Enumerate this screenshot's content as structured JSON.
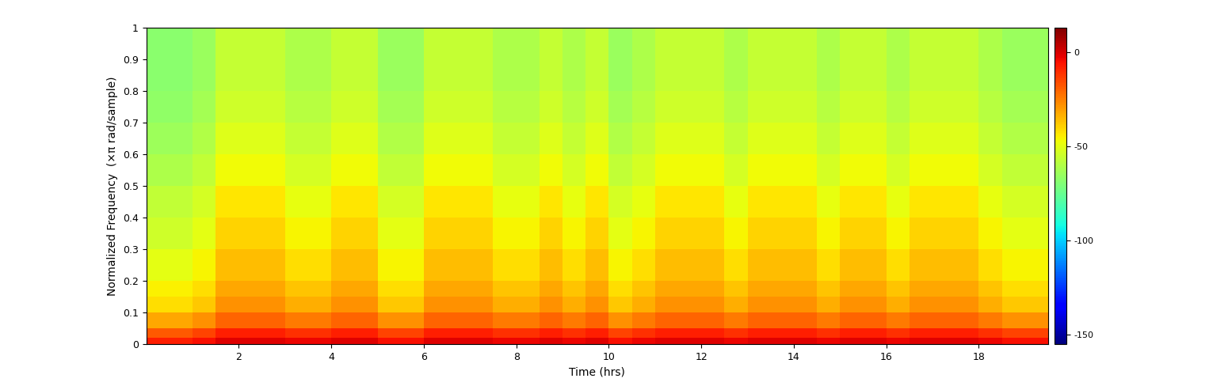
{
  "chart_data": {
    "type": "spectrogram",
    "x_label": "Time (hrs)",
    "y_label": "Normalized Frequency  (×π rad/sample)",
    "color": "jet",
    "xlim": [
      0,
      19.5
    ],
    "xticks": [
      2,
      4,
      6,
      8,
      10,
      12,
      14,
      16,
      18
    ],
    "ylim": [
      0,
      1
    ],
    "yticks": [
      0,
      0.1,
      0.2,
      0.3,
      0.4,
      0.5,
      0.6,
      0.7,
      0.8,
      0.9,
      1
    ],
    "time_edges": [
      0,
      0.5,
      1,
      1.5,
      2,
      2.5,
      3,
      3.5,
      4,
      4.5,
      5,
      5.5,
      6,
      6.5,
      7,
      7.5,
      8,
      8.5,
      9,
      9.5,
      10,
      10.5,
      11,
      11.5,
      12,
      12.5,
      13,
      13.5,
      14,
      14.5,
      15,
      15.5,
      16,
      16.5,
      17,
      17.5,
      18,
      18.5,
      19,
      19.5
    ],
    "freq_edges": [
      0,
      0.02,
      0.05,
      0.1,
      0.15,
      0.2,
      0.3,
      0.4,
      0.5,
      0.6,
      0.7,
      0.8,
      0.9,
      1
    ],
    "cells": [
      [
        -8,
        -8,
        -5,
        -1,
        -1,
        -1,
        -3,
        -3,
        -1,
        -1,
        -5,
        -5,
        -1,
        -1,
        -1,
        -3,
        -3,
        -1,
        -3,
        -1,
        -5,
        -3,
        -1,
        -1,
        -1,
        -3,
        -1,
        -1,
        -1,
        -3,
        -1,
        -1,
        -3,
        -1,
        -1,
        -1,
        -3,
        -5,
        -5
      ],
      [
        -18,
        -18,
        -14,
        -8,
        -8,
        -8,
        -11,
        -11,
        -8,
        -8,
        -14,
        -14,
        -8,
        -8,
        -8,
        -11,
        -11,
        -8,
        -11,
        -8,
        -14,
        -11,
        -8,
        -8,
        -8,
        -11,
        -8,
        -8,
        -8,
        -11,
        -8,
        -8,
        -11,
        -8,
        -8,
        -8,
        -11,
        -14,
        -14
      ],
      [
        -32,
        -32,
        -28,
        -20,
        -20,
        -20,
        -24,
        -24,
        -20,
        -20,
        -28,
        -28,
        -20,
        -20,
        -20,
        -24,
        -24,
        -20,
        -24,
        -20,
        -28,
        -24,
        -20,
        -20,
        -20,
        -24,
        -20,
        -20,
        -20,
        -24,
        -20,
        -20,
        -24,
        -20,
        -20,
        -20,
        -24,
        -28,
        -28
      ],
      [
        -42,
        -42,
        -38,
        -28,
        -28,
        -28,
        -33,
        -33,
        -28,
        -28,
        -38,
        -38,
        -28,
        -28,
        -28,
        -33,
        -33,
        -28,
        -33,
        -28,
        -38,
        -33,
        -28,
        -28,
        -28,
        -33,
        -28,
        -28,
        -28,
        -33,
        -28,
        -28,
        -33,
        -28,
        -28,
        -28,
        -33,
        -38,
        -38
      ],
      [
        -45,
        -45,
        -42,
        -32,
        -32,
        -32,
        -37,
        -37,
        -32,
        -32,
        -42,
        -42,
        -32,
        -32,
        -32,
        -37,
        -37,
        -32,
        -37,
        -32,
        -42,
        -37,
        -32,
        -32,
        -32,
        -37,
        -32,
        -32,
        -32,
        -37,
        -32,
        -32,
        -37,
        -32,
        -32,
        -32,
        -37,
        -42,
        -42
      ],
      [
        -50,
        -50,
        -46,
        -36,
        -36,
        -36,
        -42,
        -42,
        -36,
        -36,
        -46,
        -46,
        -36,
        -36,
        -36,
        -42,
        -42,
        -36,
        -42,
        -36,
        -46,
        -42,
        -36,
        -36,
        -36,
        -42,
        -36,
        -36,
        -36,
        -42,
        -36,
        -36,
        -42,
        -36,
        -36,
        -36,
        -42,
        -46,
        -46
      ],
      [
        -54,
        -54,
        -50,
        -40,
        -40,
        -40,
        -46,
        -46,
        -40,
        -40,
        -50,
        -50,
        -40,
        -40,
        -40,
        -46,
        -46,
        -40,
        -46,
        -40,
        -50,
        -46,
        -40,
        -40,
        -40,
        -46,
        -40,
        -40,
        -40,
        -46,
        -40,
        -40,
        -46,
        -40,
        -40,
        -40,
        -46,
        -50,
        -50
      ],
      [
        -57,
        -57,
        -53,
        -43,
        -43,
        -43,
        -49,
        -49,
        -43,
        -43,
        -53,
        -53,
        -43,
        -43,
        -43,
        -49,
        -49,
        -43,
        -49,
        -43,
        -53,
        -49,
        -43,
        -43,
        -43,
        -49,
        -43,
        -43,
        -43,
        -49,
        -43,
        -43,
        -49,
        -43,
        -43,
        -43,
        -49,
        -53,
        -53
      ],
      [
        -61,
        -61,
        -57,
        -47,
        -47,
        -47,
        -53,
        -53,
        -47,
        -47,
        -57,
        -57,
        -47,
        -47,
        -47,
        -53,
        -53,
        -47,
        -53,
        -47,
        -57,
        -53,
        -47,
        -47,
        -47,
        -53,
        -47,
        -47,
        -47,
        -53,
        -47,
        -47,
        -53,
        -47,
        -47,
        -47,
        -53,
        -57,
        -57
      ],
      [
        -64,
        -64,
        -60,
        -51,
        -51,
        -51,
        -56,
        -56,
        -51,
        -51,
        -60,
        -60,
        -51,
        -51,
        -51,
        -56,
        -56,
        -51,
        -56,
        -51,
        -60,
        -56,
        -51,
        -51,
        -51,
        -56,
        -51,
        -51,
        -51,
        -56,
        -51,
        -51,
        -56,
        -51,
        -51,
        -51,
        -56,
        -60,
        -60
      ],
      [
        -67,
        -67,
        -63,
        -54,
        -54,
        -54,
        -59,
        -59,
        -54,
        -54,
        -63,
        -63,
        -54,
        -54,
        -54,
        -59,
        -59,
        -54,
        -59,
        -54,
        -63,
        -59,
        -54,
        -54,
        -54,
        -59,
        -54,
        -54,
        -54,
        -59,
        -54,
        -54,
        -59,
        -54,
        -54,
        -54,
        -59,
        -63,
        -63
      ],
      [
        -68,
        -68,
        -65,
        -56,
        -56,
        -56,
        -61,
        -61,
        -56,
        -56,
        -65,
        -65,
        -56,
        -56,
        -56,
        -61,
        -61,
        -56,
        -61,
        -56,
        -65,
        -61,
        -56,
        -56,
        -56,
        -61,
        -56,
        -56,
        -56,
        -61,
        -56,
        -56,
        -61,
        -56,
        -56,
        -56,
        -61,
        -65,
        -65
      ],
      [
        -68,
        -68,
        -65,
        -56,
        -56,
        -56,
        -61,
        -61,
        -56,
        -56,
        -65,
        -65,
        -56,
        -56,
        -56,
        -61,
        -61,
        -56,
        -61,
        -56,
        -65,
        -61,
        -56,
        -56,
        -56,
        -61,
        -56,
        -56,
        -56,
        -61,
        -56,
        -56,
        -61,
        -56,
        -56,
        -56,
        -61,
        -65,
        -65
      ]
    ],
    "colorbar_range": [
      -155,
      13
    ],
    "colorbar_ticks": [
      -150,
      -100,
      -50,
      0
    ]
  }
}
